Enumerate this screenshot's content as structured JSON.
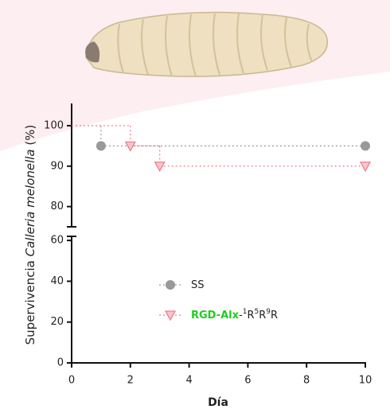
{
  "chart_data": {
    "type": "step",
    "ylabel": [
      "Supervivencia ",
      "Calleria melonella",
      " (%)"
    ],
    "xlabel": "Día",
    "xlim": [
      0,
      10
    ],
    "xticks": [
      0,
      2,
      4,
      6,
      8,
      10
    ],
    "ylim": [
      0,
      62
    ],
    "yticks": [
      0,
      20,
      40,
      60
    ],
    "ylim_upper": [
      75,
      105.5
    ],
    "yticks_upper": [
      80,
      90,
      100
    ],
    "series": [
      {
        "name": [
          "SS"
        ],
        "name_sup": [
          false
        ],
        "color": "#999999",
        "marker": "circle",
        "x": [
          0,
          1,
          10
        ],
        "values": [
          100,
          95,
          95
        ]
      },
      {
        "name": [
          "RGD-Alx",
          "-",
          "1",
          "R",
          "5",
          "R",
          "9",
          "R"
        ],
        "name_sup": [
          false,
          false,
          true,
          false,
          true,
          false,
          true,
          false
        ],
        "name_highlight": "#22cc22",
        "color": "#f07c8a",
        "marker": "triangle-down",
        "x": [
          0,
          2,
          3,
          10
        ],
        "values": [
          100,
          95,
          90,
          90
        ]
      }
    ]
  }
}
